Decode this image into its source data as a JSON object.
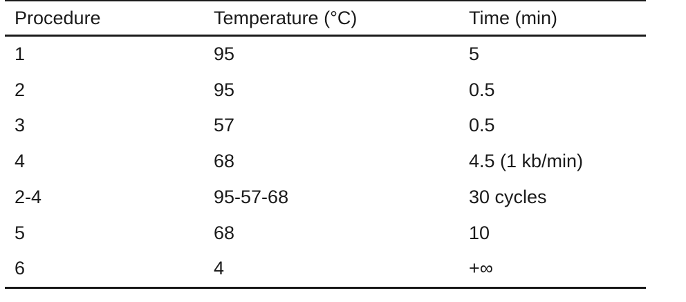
{
  "table": {
    "headers": [
      "Procedure",
      "Temperature (°C)",
      "Time (min)"
    ],
    "rows": [
      [
        "1",
        "95",
        "5"
      ],
      [
        "2",
        "95",
        "0.5"
      ],
      [
        "3",
        "57",
        "0.5"
      ],
      [
        "4",
        "68",
        "4.5 (1 kb/min)"
      ],
      [
        "2-4",
        "95-57-68",
        "30 cycles"
      ],
      [
        "5",
        "68",
        "10"
      ],
      [
        "6",
        "4",
        "+∞"
      ]
    ]
  }
}
